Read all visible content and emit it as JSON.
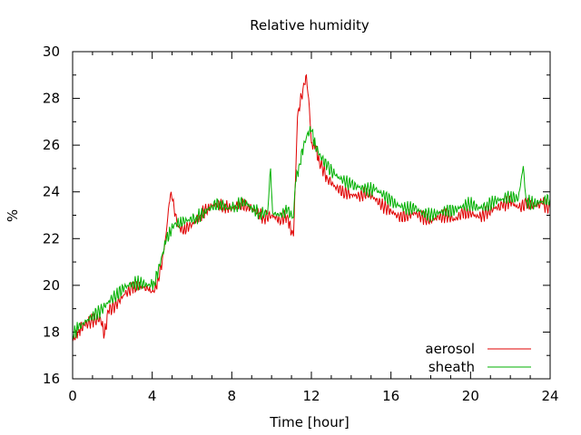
{
  "chart_data": {
    "type": "line",
    "title": "Relative humidity",
    "xlabel": "Time [hour]",
    "ylabel": "%",
    "xlim": [
      0,
      24
    ],
    "ylim": [
      16,
      30
    ],
    "xticks": [
      0,
      4,
      8,
      12,
      16,
      20,
      24
    ],
    "yticks": [
      16,
      18,
      20,
      22,
      24,
      26,
      28,
      30
    ],
    "grid": false,
    "legend_position": "bottom-right",
    "series": [
      {
        "name": "aerosol",
        "color": "#e00000",
        "points": [
          [
            0,
            17.6
          ],
          [
            0.3,
            18.1
          ],
          [
            0.6,
            18.3
          ],
          [
            1.0,
            18.5
          ],
          [
            1.4,
            18.6
          ],
          [
            1.6,
            17.9
          ],
          [
            1.8,
            18.9
          ],
          [
            2.2,
            19.2
          ],
          [
            2.6,
            19.6
          ],
          [
            3.0,
            19.9
          ],
          [
            3.4,
            20.0
          ],
          [
            3.8,
            19.8
          ],
          [
            4.1,
            19.7
          ],
          [
            4.3,
            20.3
          ],
          [
            4.5,
            21.0
          ],
          [
            4.7,
            22.2
          ],
          [
            4.85,
            23.5
          ],
          [
            4.95,
            24.0
          ],
          [
            5.1,
            23.3
          ],
          [
            5.3,
            22.5
          ],
          [
            5.6,
            22.4
          ],
          [
            6.0,
            22.6
          ],
          [
            6.4,
            23.0
          ],
          [
            6.8,
            23.3
          ],
          [
            7.2,
            23.5
          ],
          [
            7.6,
            23.4
          ],
          [
            8.0,
            23.3
          ],
          [
            8.4,
            23.5
          ],
          [
            8.8,
            23.4
          ],
          [
            9.2,
            23.2
          ],
          [
            9.6,
            22.9
          ],
          [
            10.0,
            23.0
          ],
          [
            10.4,
            22.8
          ],
          [
            10.8,
            23.0
          ],
          [
            11.0,
            22.2
          ],
          [
            11.1,
            22.1
          ],
          [
            11.2,
            24.5
          ],
          [
            11.3,
            27.2
          ],
          [
            11.5,
            28.1
          ],
          [
            11.65,
            28.6
          ],
          [
            11.75,
            29.0
          ],
          [
            11.9,
            27.6
          ],
          [
            12.0,
            26.1
          ],
          [
            12.2,
            25.9
          ],
          [
            12.4,
            25.3
          ],
          [
            12.8,
            24.6
          ],
          [
            13.2,
            24.2
          ],
          [
            13.6,
            24.0
          ],
          [
            14.0,
            23.9
          ],
          [
            14.4,
            23.8
          ],
          [
            14.8,
            24.0
          ],
          [
            15.2,
            23.7
          ],
          [
            15.6,
            23.4
          ],
          [
            16.0,
            23.2
          ],
          [
            16.4,
            22.9
          ],
          [
            16.8,
            23.0
          ],
          [
            17.2,
            23.1
          ],
          [
            17.6,
            22.9
          ],
          [
            18.0,
            22.8
          ],
          [
            18.4,
            22.9
          ],
          [
            18.8,
            23.0
          ],
          [
            19.2,
            22.8
          ],
          [
            19.6,
            23.1
          ],
          [
            20.0,
            23.1
          ],
          [
            20.4,
            22.9
          ],
          [
            20.8,
            23.1
          ],
          [
            21.2,
            23.3
          ],
          [
            21.6,
            23.4
          ],
          [
            22.0,
            23.6
          ],
          [
            22.4,
            23.3
          ],
          [
            22.8,
            23.5
          ],
          [
            23.2,
            23.4
          ],
          [
            23.6,
            23.5
          ],
          [
            24.0,
            23.3
          ]
        ]
      },
      {
        "name": "sheath",
        "color": "#00b000",
        "points": [
          [
            0,
            17.9
          ],
          [
            0.3,
            18.2
          ],
          [
            0.6,
            18.4
          ],
          [
            1.0,
            18.7
          ],
          [
            1.4,
            18.9
          ],
          [
            1.8,
            19.3
          ],
          [
            2.2,
            19.6
          ],
          [
            2.6,
            19.9
          ],
          [
            3.0,
            20.1
          ],
          [
            3.4,
            20.1
          ],
          [
            3.8,
            20.0
          ],
          [
            4.1,
            20.1
          ],
          [
            4.3,
            20.6
          ],
          [
            4.5,
            21.3
          ],
          [
            4.7,
            21.9
          ],
          [
            4.9,
            22.3
          ],
          [
            5.1,
            22.6
          ],
          [
            5.4,
            22.7
          ],
          [
            5.8,
            22.8
          ],
          [
            6.2,
            22.9
          ],
          [
            6.6,
            23.1
          ],
          [
            7.0,
            23.4
          ],
          [
            7.4,
            23.5
          ],
          [
            7.8,
            23.3
          ],
          [
            8.2,
            23.4
          ],
          [
            8.6,
            23.6
          ],
          [
            9.0,
            23.3
          ],
          [
            9.4,
            23.1
          ],
          [
            9.8,
            23.1
          ],
          [
            9.95,
            25.0
          ],
          [
            10.05,
            23.1
          ],
          [
            10.4,
            23.0
          ],
          [
            10.8,
            23.2
          ],
          [
            11.1,
            22.9
          ],
          [
            11.2,
            24.4
          ],
          [
            11.4,
            25.2
          ],
          [
            11.6,
            25.9
          ],
          [
            11.8,
            26.5
          ],
          [
            12.0,
            26.6
          ],
          [
            12.2,
            26.0
          ],
          [
            12.4,
            25.6
          ],
          [
            12.8,
            25.1
          ],
          [
            13.2,
            24.7
          ],
          [
            13.6,
            24.5
          ],
          [
            14.0,
            24.3
          ],
          [
            14.4,
            24.2
          ],
          [
            14.8,
            24.1
          ],
          [
            15.2,
            24.1
          ],
          [
            15.6,
            23.9
          ],
          [
            16.0,
            23.6
          ],
          [
            16.4,
            23.4
          ],
          [
            16.8,
            23.3
          ],
          [
            17.2,
            23.3
          ],
          [
            17.6,
            23.1
          ],
          [
            18.0,
            23.0
          ],
          [
            18.4,
            23.1
          ],
          [
            18.8,
            23.2
          ],
          [
            19.2,
            23.2
          ],
          [
            19.6,
            23.4
          ],
          [
            20.0,
            23.5
          ],
          [
            20.4,
            23.3
          ],
          [
            20.8,
            23.4
          ],
          [
            21.2,
            23.6
          ],
          [
            21.6,
            23.7
          ],
          [
            22.0,
            23.8
          ],
          [
            22.4,
            23.7
          ],
          [
            22.65,
            25.1
          ],
          [
            22.8,
            23.6
          ],
          [
            23.2,
            23.5
          ],
          [
            23.6,
            23.6
          ],
          [
            24.0,
            23.7
          ]
        ]
      }
    ]
  }
}
